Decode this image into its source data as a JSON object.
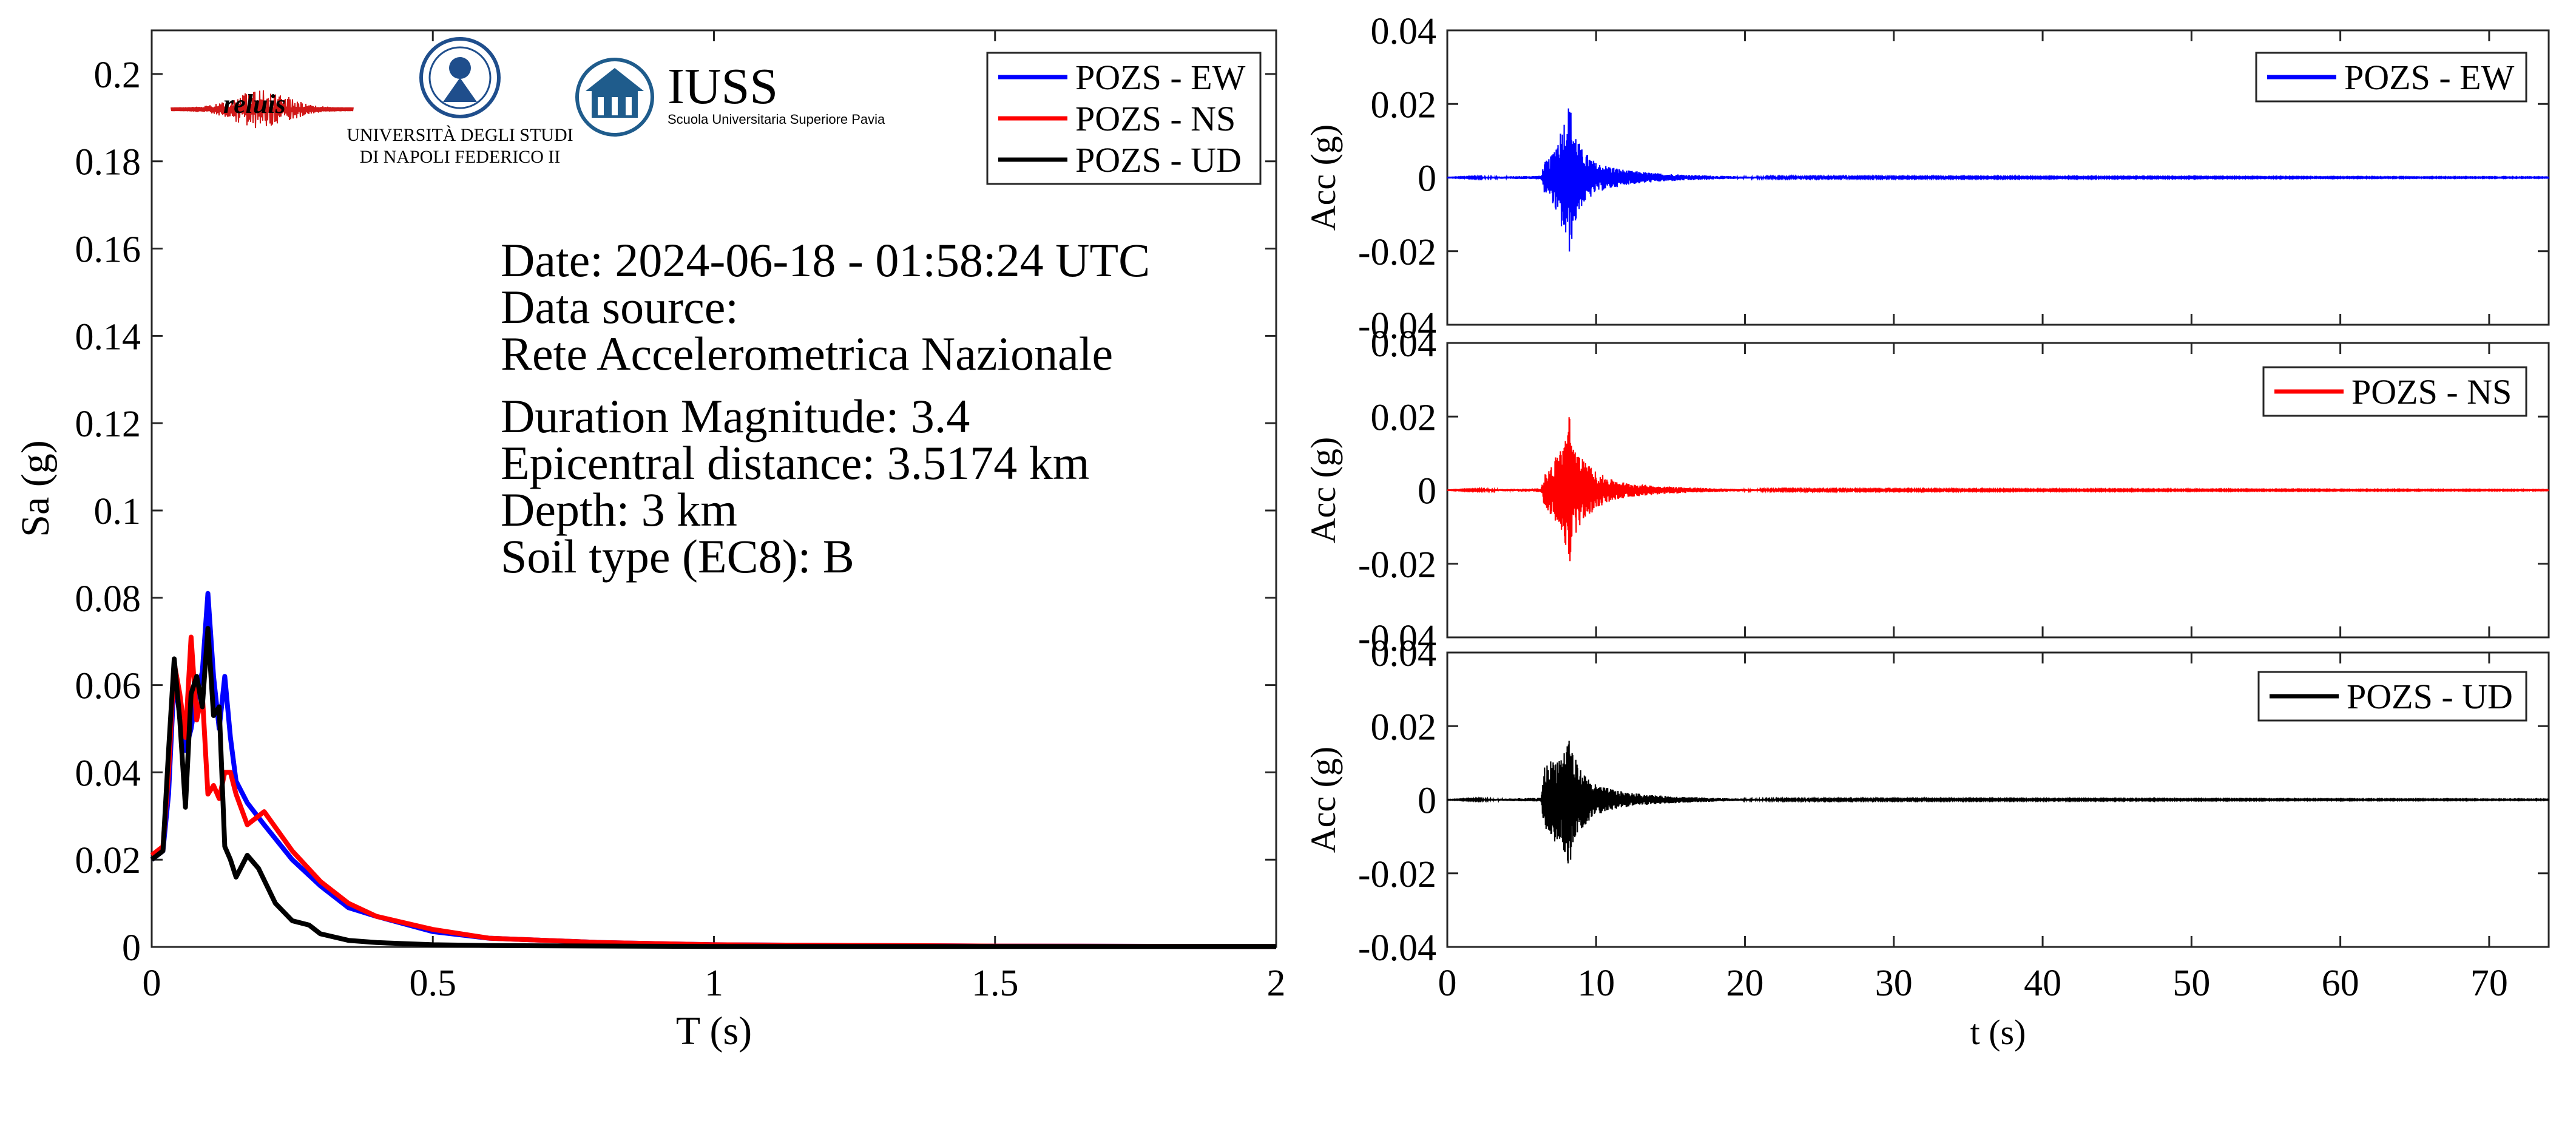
{
  "colors": {
    "ew": "#0000ff",
    "ns": "#ff0000",
    "ud": "#000000",
    "iuss_blue": "#1f5c8c"
  },
  "logos": {
    "reluis": "reluis",
    "unina_line1": "UNIVERSITÀ DEGLI STUDI",
    "unina_line2": "DI NAPOLI FEDERICO II",
    "iuss_title": "IUSS",
    "iuss_subtitle": "Scuola Universitaria Superiore Pavia"
  },
  "info": {
    "date": "Date: 2024-06-18 - 01:58:24 UTC",
    "source_label": "Data source:",
    "source": "Rete Accelerometrica Nazionale",
    "magnitude": "Duration Magnitude: 3.4",
    "distance": "Epicentral distance: 3.5174 km",
    "depth": "Depth: 3 km",
    "soil": "Soil type (EC8): B"
  },
  "chart_data": [
    {
      "type": "line",
      "xlabel": "T (s)",
      "ylabel": "Sa (g)",
      "xlim": [
        0,
        2
      ],
      "ylim": [
        0,
        0.21
      ],
      "xticks": [
        "0",
        "0.5",
        "1",
        "1.5",
        "2"
      ],
      "yticks": [
        "0",
        "0.02",
        "0.04",
        "0.06",
        "0.08",
        "0.1",
        "0.12",
        "0.14",
        "0.16",
        "0.18",
        "0.2"
      ],
      "grid": false,
      "legend_position": "top-right",
      "series": [
        {
          "name": "POZS - EW",
          "color": "#0000ff",
          "x": [
            0,
            0.02,
            0.03,
            0.04,
            0.05,
            0.06,
            0.07,
            0.08,
            0.09,
            0.1,
            0.11,
            0.12,
            0.13,
            0.14,
            0.15,
            0.17,
            0.2,
            0.25,
            0.3,
            0.35,
            0.4,
            0.5,
            0.6,
            0.8,
            1.0,
            1.5,
            2.0
          ],
          "y": [
            0.02,
            0.022,
            0.035,
            0.062,
            0.053,
            0.045,
            0.05,
            0.058,
            0.063,
            0.081,
            0.062,
            0.05,
            0.062,
            0.048,
            0.038,
            0.033,
            0.028,
            0.02,
            0.014,
            0.009,
            0.007,
            0.0035,
            0.002,
            0.001,
            0.0005,
            0.0002,
            0.0001
          ]
        },
        {
          "name": "POZS - NS",
          "color": "#ff0000",
          "x": [
            0,
            0.02,
            0.03,
            0.04,
            0.05,
            0.06,
            0.07,
            0.08,
            0.09,
            0.1,
            0.11,
            0.12,
            0.13,
            0.14,
            0.15,
            0.17,
            0.2,
            0.25,
            0.3,
            0.35,
            0.4,
            0.5,
            0.6,
            0.8,
            1.0,
            1.5,
            2.0
          ],
          "y": [
            0.021,
            0.023,
            0.04,
            0.065,
            0.058,
            0.048,
            0.071,
            0.052,
            0.058,
            0.035,
            0.037,
            0.034,
            0.04,
            0.04,
            0.035,
            0.028,
            0.031,
            0.022,
            0.015,
            0.01,
            0.007,
            0.004,
            0.002,
            0.001,
            0.0005,
            0.0002,
            0.0001
          ]
        },
        {
          "name": "POZS - UD",
          "color": "#000000",
          "x": [
            0,
            0.02,
            0.03,
            0.04,
            0.05,
            0.06,
            0.07,
            0.08,
            0.09,
            0.1,
            0.11,
            0.12,
            0.13,
            0.14,
            0.15,
            0.17,
            0.19,
            0.22,
            0.25,
            0.28,
            0.3,
            0.35,
            0.4,
            0.5,
            0.6,
            1.0,
            2.0
          ],
          "y": [
            0.02,
            0.022,
            0.045,
            0.066,
            0.052,
            0.032,
            0.058,
            0.062,
            0.055,
            0.073,
            0.053,
            0.055,
            0.023,
            0.02,
            0.016,
            0.021,
            0.018,
            0.01,
            0.006,
            0.005,
            0.003,
            0.0015,
            0.001,
            0.0005,
            0.0003,
            0.0001,
            0.0001
          ]
        }
      ]
    },
    {
      "type": "line",
      "xlabel": "",
      "ylabel": "Acc (g)",
      "xlim": [
        0,
        74
      ],
      "ylim": [
        -0.04,
        0.04
      ],
      "yticks": [
        "-0.04",
        "-0.02",
        "0",
        "0.02",
        "0.04"
      ],
      "legend_position": "top-right",
      "series": [
        {
          "name": "POZS - EW",
          "color": "#0000ff",
          "envelope": {
            "t": [
              0,
              6.3,
              6.5,
              7,
              7.5,
              8,
              8.2,
              8.5,
              9,
              10,
              11,
              12,
              14,
              16,
              18,
              20,
              22,
              74
            ],
            "amp": [
              5e-05,
              0.0005,
              0.004,
              0.006,
              0.012,
              0.018,
              0.021,
              0.014,
              0.008,
              0.004,
              0.003,
              0.002,
              0.0012,
              0.0008,
              0.0005,
              0.0003,
              0.0002,
              0.0001
            ]
          }
        }
      ]
    },
    {
      "type": "line",
      "xlabel": "",
      "ylabel": "Acc (g)",
      "xlim": [
        0,
        74
      ],
      "ylim": [
        -0.04,
        0.04
      ],
      "yticks": [
        "-0.04",
        "-0.02",
        "0",
        "0.02",
        "0.04"
      ],
      "legend_position": "top-right",
      "series": [
        {
          "name": "POZS - NS",
          "color": "#ff0000",
          "envelope": {
            "t": [
              0,
              6.3,
              6.5,
              7,
              7.5,
              8,
              8.2,
              8.5,
              9,
              10,
              11,
              12,
              14,
              16,
              18,
              20,
              22,
              74
            ],
            "amp": [
              5e-05,
              0.0005,
              0.004,
              0.007,
              0.011,
              0.016,
              0.021,
              0.013,
              0.009,
              0.005,
              0.003,
              0.002,
              0.0012,
              0.0008,
              0.0005,
              0.0003,
              0.0002,
              0.0001
            ]
          }
        }
      ]
    },
    {
      "type": "line",
      "xlabel": "t (s)",
      "ylabel": "Acc (g)",
      "xlim": [
        0,
        74
      ],
      "ylim": [
        -0.04,
        0.04
      ],
      "xticks": [
        "0",
        "10",
        "20",
        "30",
        "40",
        "50",
        "60",
        "70"
      ],
      "yticks": [
        "-0.04",
        "-0.02",
        "0",
        "0.02",
        "0.04"
      ],
      "legend_position": "top-right",
      "series": [
        {
          "name": "POZS - UD",
          "color": "#000000",
          "envelope": {
            "t": [
              0,
              6.3,
              6.5,
              7,
              7.5,
              8,
              8.2,
              8.5,
              9,
              10,
              11,
              12,
              14,
              16,
              18,
              20,
              22,
              74
            ],
            "amp": [
              5e-05,
              0.0005,
              0.009,
              0.011,
              0.012,
              0.015,
              0.02,
              0.012,
              0.008,
              0.004,
              0.003,
              0.002,
              0.0012,
              0.0008,
              0.0005,
              0.0003,
              0.0002,
              0.0001
            ]
          }
        }
      ]
    }
  ]
}
